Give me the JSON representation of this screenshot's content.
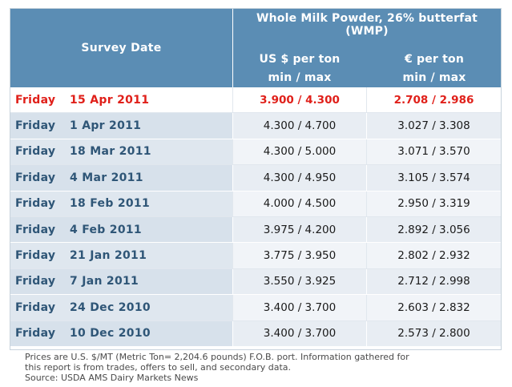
{
  "chart_data": {
    "type": "table",
    "header": {
      "survey_date": "Survey Date",
      "product_line1": "Whole Milk Powder, 26% butterfat",
      "product_line2": "(WMP)",
      "usd_line1": "US $ per ton",
      "usd_line2": "min / max",
      "eur_line1": "€ per ton",
      "eur_line2": "min / max"
    },
    "rows": [
      {
        "day": "Friday",
        "date": "15 Apr 2011",
        "usd": "3.900 / 4.300",
        "eur": "2.708 / 2.986",
        "highlight": true
      },
      {
        "day": "Friday",
        "date": "1 Apr 2011",
        "usd": "4.300 / 4.700",
        "eur": "3.027 / 3.308",
        "highlight": false
      },
      {
        "day": "Friday",
        "date": "18 Mar 2011",
        "usd": "4.300 / 5.000",
        "eur": "3.071 / 3.570",
        "highlight": false
      },
      {
        "day": "Friday",
        "date": "4 Mar 2011",
        "usd": "4.300 / 4.950",
        "eur": "3.105 / 3.574",
        "highlight": false
      },
      {
        "day": "Friday",
        "date": "18 Feb 2011",
        "usd": "4.000 / 4.500",
        "eur": "2.950 / 3.319",
        "highlight": false
      },
      {
        "day": "Friday",
        "date": "4 Feb 2011",
        "usd": "3.975 / 4.200",
        "eur": "2.892 / 3.056",
        "highlight": false
      },
      {
        "day": "Friday",
        "date": "21 Jan 2011",
        "usd": "3.775 / 3.950",
        "eur": "2.802 / 2.932",
        "highlight": false
      },
      {
        "day": "Friday",
        "date": "7 Jan 2011",
        "usd": "3.550 / 3.925",
        "eur": "2.712 / 2.998",
        "highlight": false
      },
      {
        "day": "Friday",
        "date": "24 Dec 2010",
        "usd": "3.400 / 3.700",
        "eur": "2.603 / 2.832",
        "highlight": false
      },
      {
        "day": "Friday",
        "date": "10 Dec 2010",
        "usd": "3.400 / 3.700",
        "eur": "2.573 / 2.800",
        "highlight": false
      }
    ],
    "footnote": [
      "Prices are U.S. $/MT (Metric Ton= 2,204.6 pounds) F.O.B. port. Information gathered for",
      "this report is from trades, offers to sell, and secondary data.",
      "Source: USDA AMS Dairy Markets News"
    ],
    "colors": {
      "header_bg": "#5b8db4",
      "highlight_text": "#e0201a",
      "date_text": "#2f5677"
    }
  }
}
